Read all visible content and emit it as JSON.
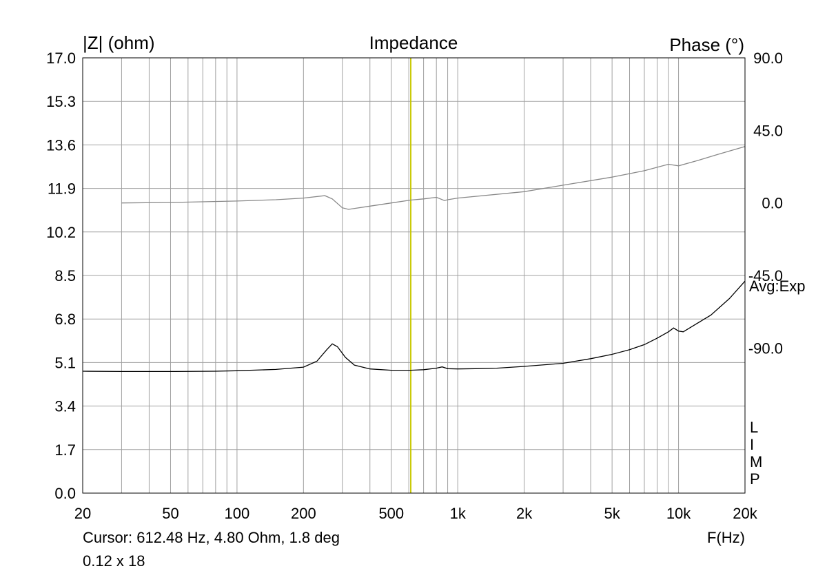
{
  "chart_data": {
    "type": "line",
    "title": "Impedance",
    "y_left_label": "|Z| (ohm)",
    "y_right_label": "Phase (°)",
    "x_label": "F(Hz)",
    "x_scale": "log",
    "xlim": [
      20,
      20000
    ],
    "ylim_left": [
      0,
      17
    ],
    "ylim_right": [
      -180,
      90
    ],
    "x_ticks": [
      {
        "value": 20,
        "label": "20"
      },
      {
        "value": 50,
        "label": "50"
      },
      {
        "value": 100,
        "label": "100"
      },
      {
        "value": 200,
        "label": "200"
      },
      {
        "value": 500,
        "label": "500"
      },
      {
        "value": 1000,
        "label": "1k"
      },
      {
        "value": 2000,
        "label": "2k"
      },
      {
        "value": 5000,
        "label": "5k"
      },
      {
        "value": 10000,
        "label": "10k"
      },
      {
        "value": 20000,
        "label": "20k"
      }
    ],
    "y_left_ticks": [
      "0.0",
      "1.7",
      "3.4",
      "5.1",
      "6.8",
      "8.5",
      "10.2",
      "11.9",
      "13.6",
      "15.3",
      "17.0"
    ],
    "y_right_ticks": [
      {
        "value": 90,
        "label": "90.0"
      },
      {
        "value": 45,
        "label": "45.0"
      },
      {
        "value": 0,
        "label": "0.0"
      },
      {
        "value": -45,
        "label": "-45.0"
      },
      {
        "value": -90,
        "label": "-90.0"
      }
    ],
    "grid": true,
    "cursor": {
      "frequency_hz": 612.48
    },
    "series": [
      {
        "axis": "left",
        "color": "#000000",
        "points": [
          [
            20,
            4.76
          ],
          [
            30,
            4.75
          ],
          [
            50,
            4.75
          ],
          [
            80,
            4.76
          ],
          [
            100,
            4.78
          ],
          [
            150,
            4.83
          ],
          [
            200,
            4.92
          ],
          [
            230,
            5.15
          ],
          [
            255,
            5.6
          ],
          [
            270,
            5.83
          ],
          [
            285,
            5.72
          ],
          [
            310,
            5.3
          ],
          [
            340,
            5.0
          ],
          [
            400,
            4.85
          ],
          [
            500,
            4.8
          ],
          [
            612,
            4.8
          ],
          [
            700,
            4.82
          ],
          [
            800,
            4.88
          ],
          [
            850,
            4.93
          ],
          [
            900,
            4.86
          ],
          [
            1000,
            4.85
          ],
          [
            1200,
            4.86
          ],
          [
            1500,
            4.88
          ],
          [
            2000,
            4.95
          ],
          [
            3000,
            5.07
          ],
          [
            4000,
            5.25
          ],
          [
            5000,
            5.42
          ],
          [
            6000,
            5.6
          ],
          [
            7000,
            5.8
          ],
          [
            8000,
            6.05
          ],
          [
            9000,
            6.3
          ],
          [
            9500,
            6.45
          ],
          [
            10000,
            6.33
          ],
          [
            10500,
            6.3
          ],
          [
            12000,
            6.6
          ],
          [
            14000,
            6.95
          ],
          [
            17000,
            7.6
          ],
          [
            20000,
            8.28
          ]
        ]
      },
      {
        "axis": "right",
        "color": "#888888",
        "points": [
          [
            30,
            0
          ],
          [
            50,
            0.3
          ],
          [
            100,
            1.2
          ],
          [
            150,
            2
          ],
          [
            200,
            3
          ],
          [
            250,
            4.5
          ],
          [
            270,
            2.5
          ],
          [
            300,
            -3
          ],
          [
            320,
            -4
          ],
          [
            400,
            -2
          ],
          [
            500,
            0
          ],
          [
            612,
            1.8
          ],
          [
            700,
            2.5
          ],
          [
            800,
            3.5
          ],
          [
            870,
            1.5
          ],
          [
            900,
            2
          ],
          [
            1000,
            3
          ],
          [
            2000,
            7
          ],
          [
            3000,
            11
          ],
          [
            5000,
            16
          ],
          [
            7000,
            20
          ],
          [
            9000,
            24
          ],
          [
            10000,
            23
          ],
          [
            12000,
            26
          ],
          [
            15000,
            30
          ],
          [
            20000,
            35
          ]
        ]
      }
    ]
  },
  "legend": {
    "avg_label": "Avg:Exp",
    "limp_letters": [
      "L",
      "I",
      "M",
      "P"
    ]
  },
  "status": {
    "cursor_text": "Cursor: 612.48 Hz, 4.80 Ohm, 1.8 deg",
    "size_text": "0.12 x 18"
  },
  "colors": {
    "grid": "#a0a0a0",
    "cursor": "#c8c800",
    "impedance": "#000000",
    "phase": "#888888"
  }
}
